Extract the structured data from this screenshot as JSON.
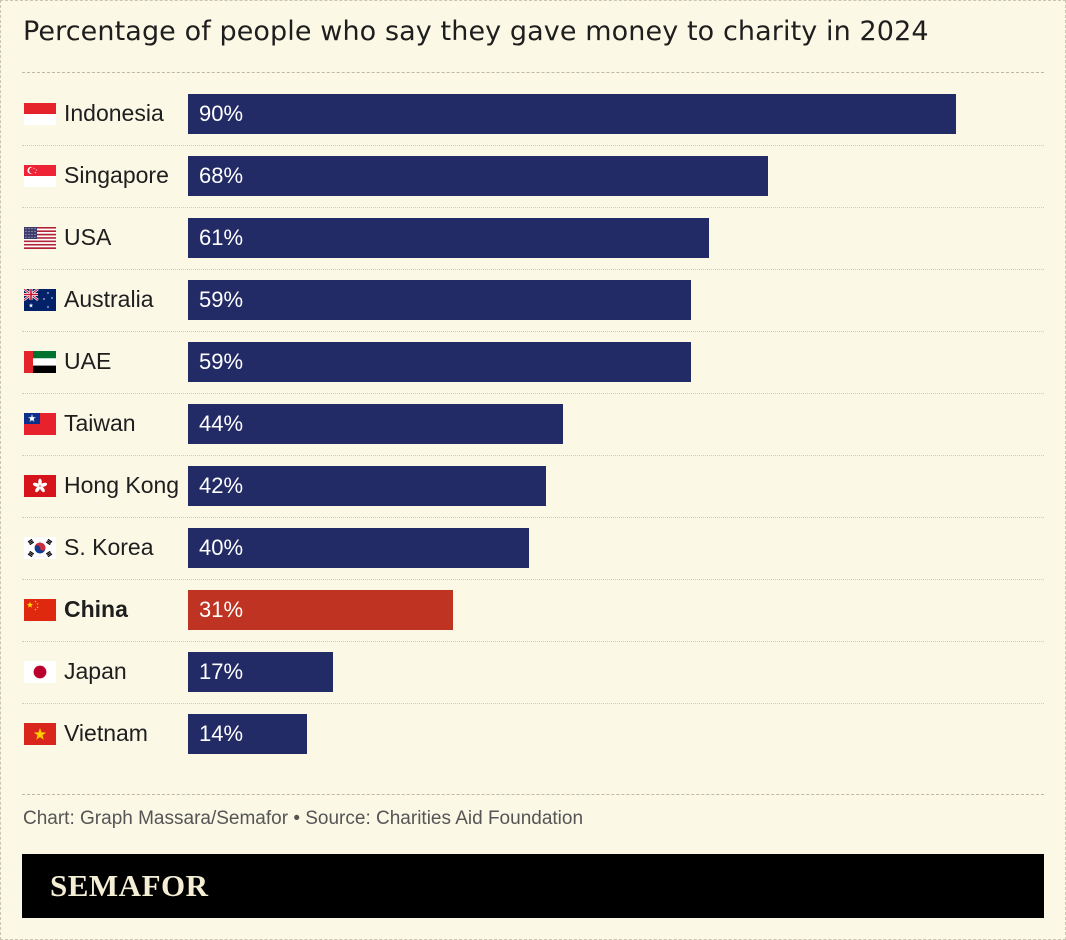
{
  "title": "Percentage of people who say they gave money to charity in 2024",
  "colors": {
    "default_bar": "#232b66",
    "highlight_bar": "#bf3322",
    "background": "#fbf8e6"
  },
  "chart_data": {
    "type": "bar",
    "orientation": "horizontal",
    "title": "Percentage of people who say they gave money to charity in 2024",
    "xlabel": "",
    "ylabel": "",
    "xlim": [
      0,
      100
    ],
    "unit": "%",
    "highlight": "China",
    "categories": [
      "Indonesia",
      "Singapore",
      "USA",
      "Australia",
      "UAE",
      "Taiwan",
      "Hong Kong",
      "S. Korea",
      "China",
      "Japan",
      "Vietnam"
    ],
    "values": [
      90,
      68,
      61,
      59,
      59,
      44,
      42,
      40,
      31,
      17,
      14
    ],
    "labels": [
      "90%",
      "68%",
      "61%",
      "59%",
      "59%",
      "44%",
      "42%",
      "40%",
      "31%",
      "17%",
      "14%"
    ],
    "flags": [
      "indonesia-flag-icon",
      "singapore-flag-icon",
      "usa-flag-icon",
      "australia-flag-icon",
      "uae-flag-icon",
      "taiwan-flag-icon",
      "hong-kong-flag-icon",
      "south-korea-flag-icon",
      "china-flag-icon",
      "japan-flag-icon",
      "vietnam-flag-icon"
    ]
  },
  "footer": {
    "credit": "Chart: Graph Massara/Semafor • Source: Charities Aid Foundation"
  },
  "brand": {
    "name": "SEMAFOR"
  }
}
